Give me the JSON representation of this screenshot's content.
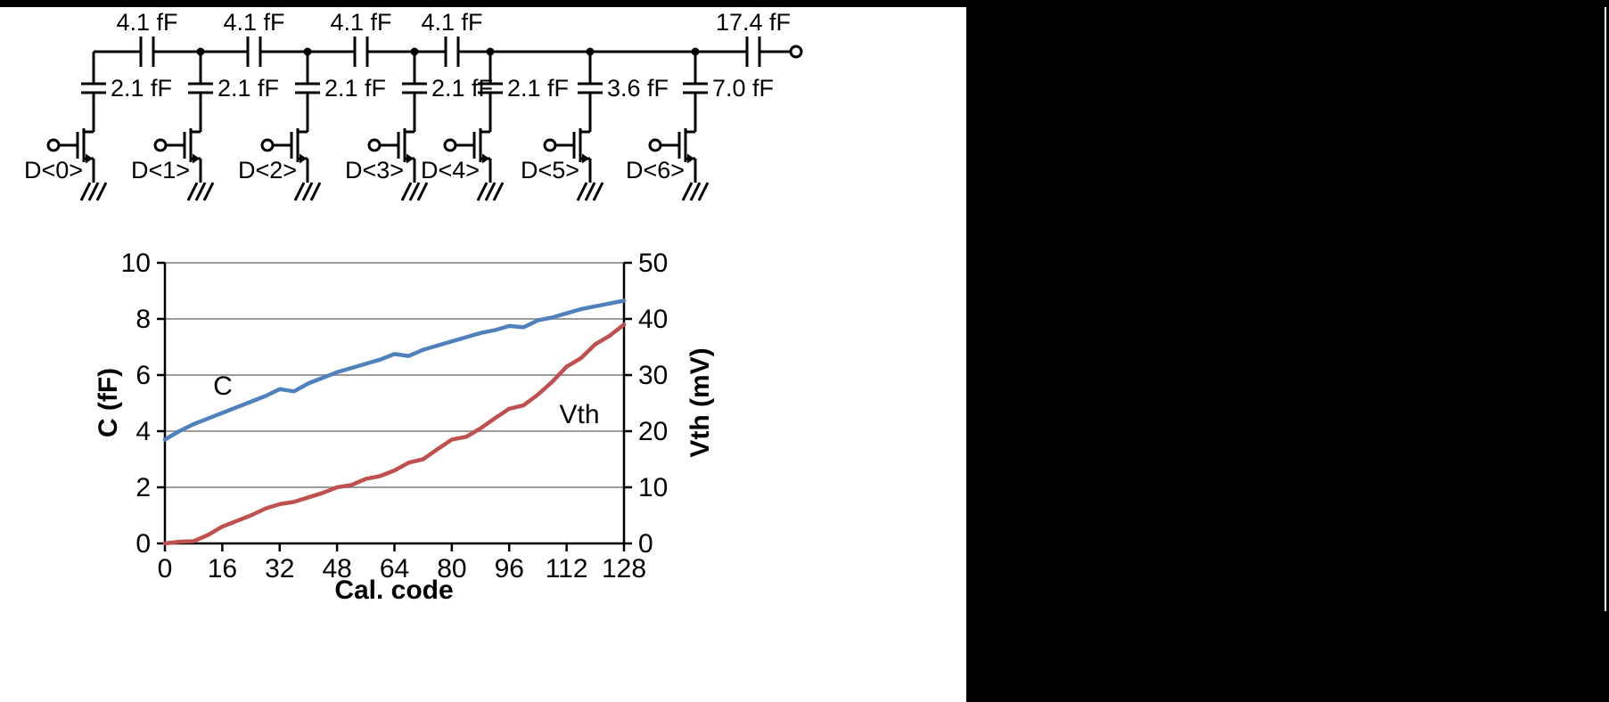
{
  "colors": {
    "background": "#000000",
    "panel": "#ffffff",
    "c_series": "#4f81bd",
    "vth_series": "#c0504d",
    "gridline": "#9c9c9c",
    "ink": "#000000"
  },
  "schematic": {
    "series_capacitors": [
      {
        "label": "4.1 fF"
      },
      {
        "label": "4.1 fF"
      },
      {
        "label": "4.1 fF"
      },
      {
        "label": "4.1 fF"
      },
      {
        "label": "17.4 fF"
      }
    ],
    "branches": [
      {
        "cap_label": "2.1 fF",
        "switch_label": "D<0>"
      },
      {
        "cap_label": "2.1 fF",
        "switch_label": "D<1>"
      },
      {
        "cap_label": "2.1 fF",
        "switch_label": "D<2>"
      },
      {
        "cap_label": "2.1 fF",
        "switch_label": "D<3>"
      },
      {
        "cap_label": "2.1 fF",
        "switch_label": "D<4>"
      },
      {
        "cap_label": "3.6 fF",
        "switch_label": "D<5>"
      },
      {
        "cap_label": "7.0 fF",
        "switch_label": "D<6>"
      }
    ]
  },
  "chart_data": {
    "type": "line",
    "title": "",
    "xlabel": "Cal. code",
    "ylabel_left": "C (fF)",
    "ylabel_right": "Vth (mV)",
    "xlim": [
      0,
      128
    ],
    "xticks": [
      0,
      16,
      32,
      48,
      64,
      80,
      96,
      112,
      128
    ],
    "ylim_left": [
      0,
      10
    ],
    "yticks_left": [
      0,
      2,
      4,
      6,
      8,
      10
    ],
    "ylim_right": [
      0,
      50
    ],
    "yticks_right": [
      0,
      10,
      20,
      30,
      40,
      50
    ],
    "grid": true,
    "legend": "none",
    "x": [
      0,
      4,
      8,
      12,
      16,
      20,
      24,
      28,
      32,
      36,
      40,
      44,
      48,
      52,
      56,
      60,
      64,
      68,
      72,
      76,
      80,
      84,
      88,
      92,
      96,
      100,
      104,
      108,
      112,
      116,
      120,
      124,
      128
    ],
    "series": [
      {
        "name": "C",
        "axis": "left",
        "color": "#4f81bd",
        "y": [
          3.7,
          4.0,
          4.25,
          4.45,
          4.65,
          4.85,
          5.05,
          5.25,
          5.5,
          5.42,
          5.7,
          5.9,
          6.1,
          6.25,
          6.4,
          6.55,
          6.75,
          6.68,
          6.9,
          7.05,
          7.2,
          7.35,
          7.5,
          7.6,
          7.75,
          7.7,
          7.95,
          8.05,
          8.2,
          8.35,
          8.45,
          8.55,
          8.65
        ]
      },
      {
        "name": "Vth",
        "axis": "right",
        "color": "#c0504d",
        "y": [
          0,
          0.3,
          0.4,
          1.5,
          3.0,
          4.0,
          5.0,
          6.2,
          7.0,
          7.4,
          8.2,
          9.0,
          10.0,
          10.4,
          11.5,
          12.0,
          13.0,
          14.4,
          15.0,
          16.8,
          18.5,
          19.0,
          20.5,
          22.3,
          24.0,
          24.6,
          26.5,
          28.8,
          31.5,
          33.0,
          35.5,
          37.0,
          39.0
        ]
      }
    ],
    "annotations": [
      {
        "text": "C",
        "x": 15,
        "y": 5.65,
        "axis": "left"
      },
      {
        "text": "Vth",
        "x": 113,
        "y": 23.2,
        "axis": "right"
      }
    ]
  }
}
